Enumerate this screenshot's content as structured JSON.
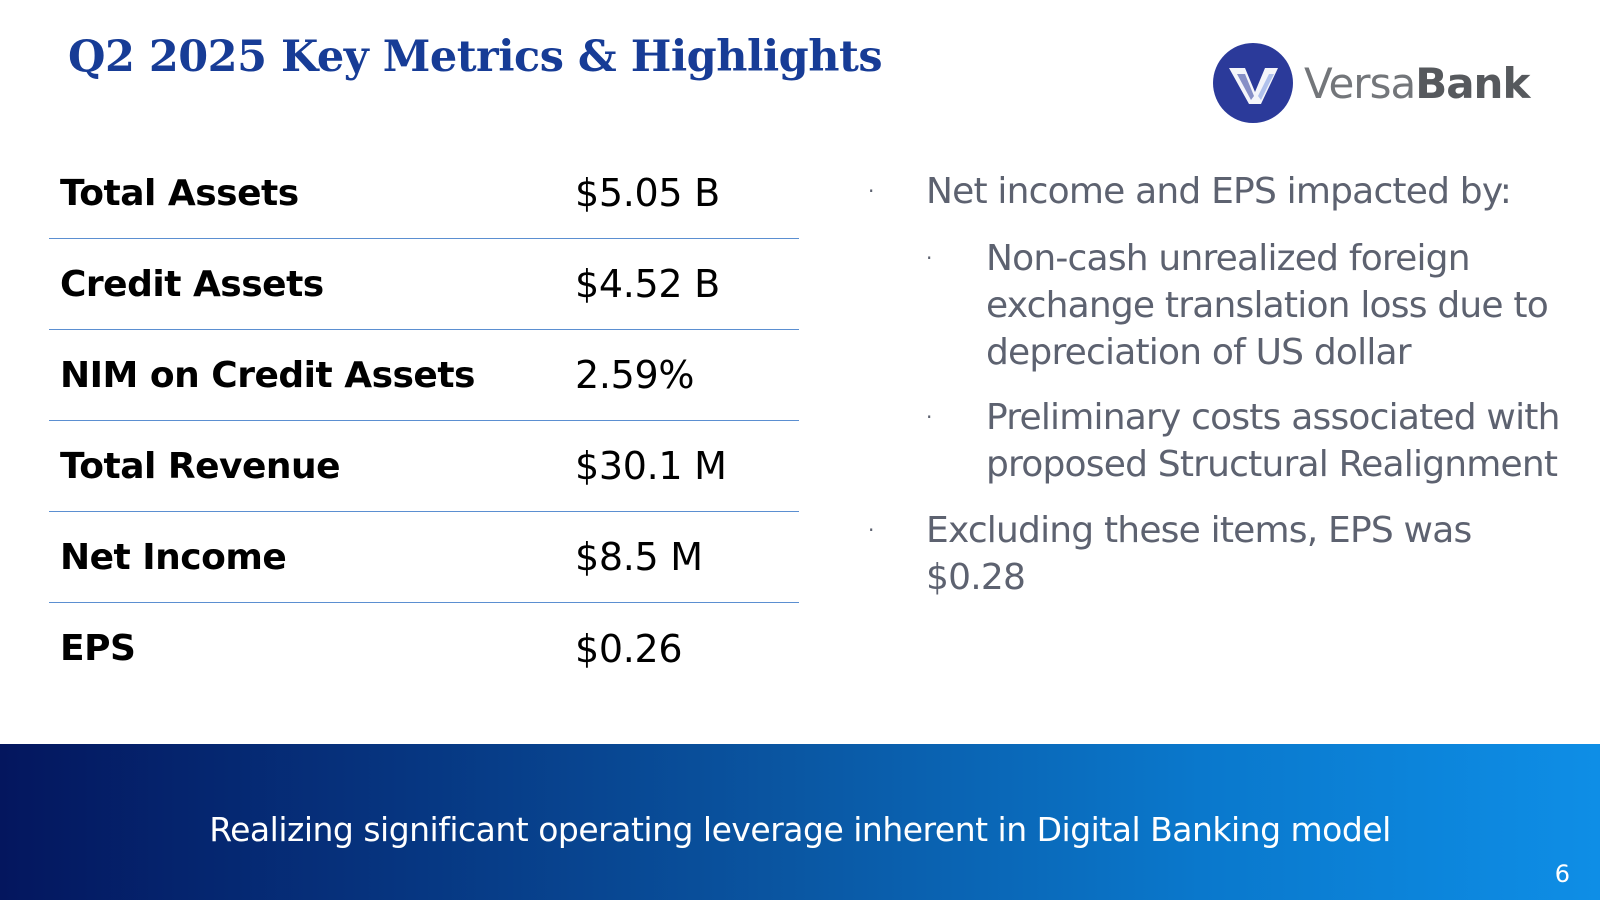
{
  "header": {
    "title": "Q2 2025 Key Metrics & Highlights",
    "logo_text_light": "Versa",
    "logo_text_bold": "Bank"
  },
  "metrics": [
    {
      "label": "Total Assets",
      "value": "$5.05 B"
    },
    {
      "label": "Credit Assets",
      "value": "$4.52 B"
    },
    {
      "label": "NIM on Credit Assets",
      "value": "2.59%"
    },
    {
      "label": "Total Revenue",
      "value": "$30.1 M"
    },
    {
      "label": "Net Income",
      "value": "$8.5 M"
    },
    {
      "label": "EPS",
      "value": "$0.26"
    }
  ],
  "highlights": {
    "bullet_1": "Net income and EPS impacted by:",
    "sub_bullet_1": "Non-cash unrealized foreign exchange translation loss due to depreciation of US dollar",
    "sub_bullet_2": "Preliminary costs associated with proposed Structural Realignment",
    "bullet_2": "Excluding these items, EPS was $0.28"
  },
  "banner": {
    "text": "Realizing significant operating leverage inherent in Digital Banking model"
  },
  "page_number": "6",
  "colors": {
    "title": "#173c96",
    "row_divider": "#5b8fd1",
    "bullet_text": "#5d6270",
    "logo_circle": "#2b3a9a",
    "banner_start": "#04165e",
    "banner_end": "#0e8ee6"
  }
}
